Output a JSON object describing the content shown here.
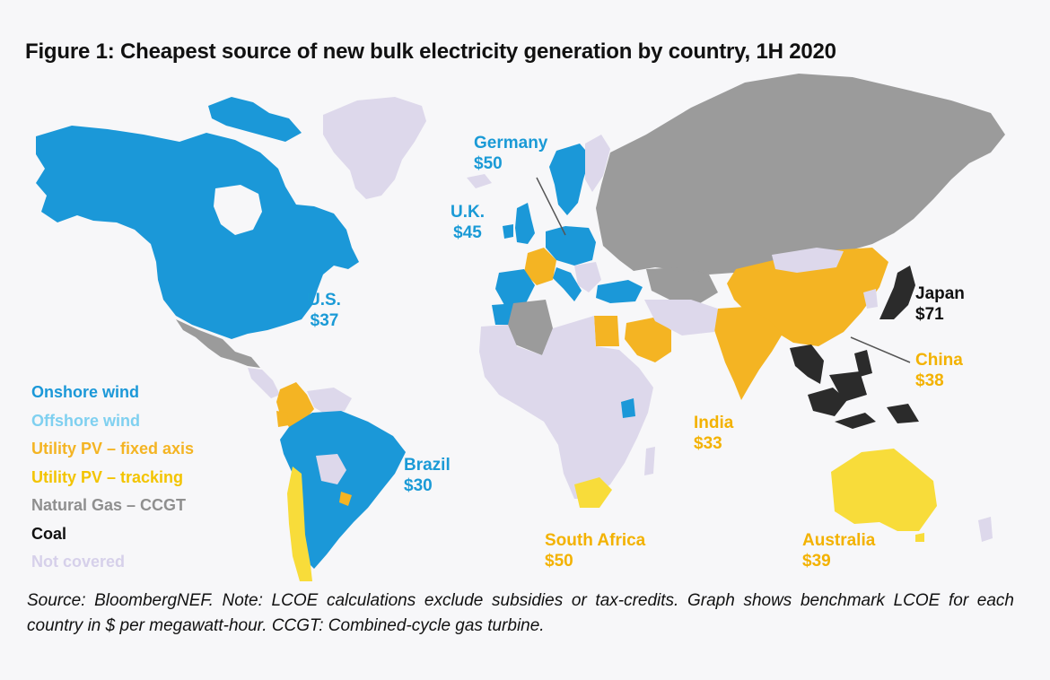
{
  "title": "Figure 1: Cheapest source of new bulk electricity generation by country, 1H 2020",
  "colors": {
    "onshore_wind": "#1b98d8",
    "offshore_wind": "#7fd0f0",
    "pv_fixed": "#f4b423",
    "pv_tracking": "#f8dc3a",
    "gas": "#9b9b9b",
    "coal": "#2b2b2b",
    "not_covered": "#ddd8eb",
    "callout_blue": "#1a9ad6",
    "callout_yellow": "#f3b200",
    "callout_black": "#111111"
  },
  "legend": [
    {
      "label": "Onshore wind",
      "color": "#1b98d8"
    },
    {
      "label": "Offshore wind",
      "color": "#7fd0f0"
    },
    {
      "label": "Utility PV – fixed axis",
      "color": "#f4b423"
    },
    {
      "label": "Utility PV – tracking",
      "color": "#f3c400"
    },
    {
      "label": "Natural Gas – CCGT",
      "color": "#8f8f8f"
    },
    {
      "label": "Coal",
      "color": "#111111"
    },
    {
      "label": "Not covered",
      "color": "#d6d0ea"
    }
  ],
  "callouts": [
    {
      "country": "Germany",
      "value": "$50",
      "color": "#1a9ad6"
    },
    {
      "country": "U.K.",
      "value": "$45",
      "color": "#1a9ad6"
    },
    {
      "country": "U.S.",
      "value": "$37",
      "color": "#1a9ad6"
    },
    {
      "country": "Brazil",
      "value": "$30",
      "color": "#1a9ad6"
    },
    {
      "country": "Japan",
      "value": "$71",
      "color": "#111111"
    },
    {
      "country": "China",
      "value": "$38",
      "color": "#f3b200"
    },
    {
      "country": "India",
      "value": "$33",
      "color": "#f3b200"
    },
    {
      "country": "South Africa",
      "value": "$50",
      "color": "#f3b200"
    },
    {
      "country": "Australia",
      "value": "$39",
      "color": "#f3b200"
    }
  ],
  "source_note": "Source: BloombergNEF. Note: LCOE calculations exclude subsidies or tax-credits. Graph shows benchmark LCOE for each country in $ per megawatt-hour. CCGT: Combined-cycle gas turbine."
}
